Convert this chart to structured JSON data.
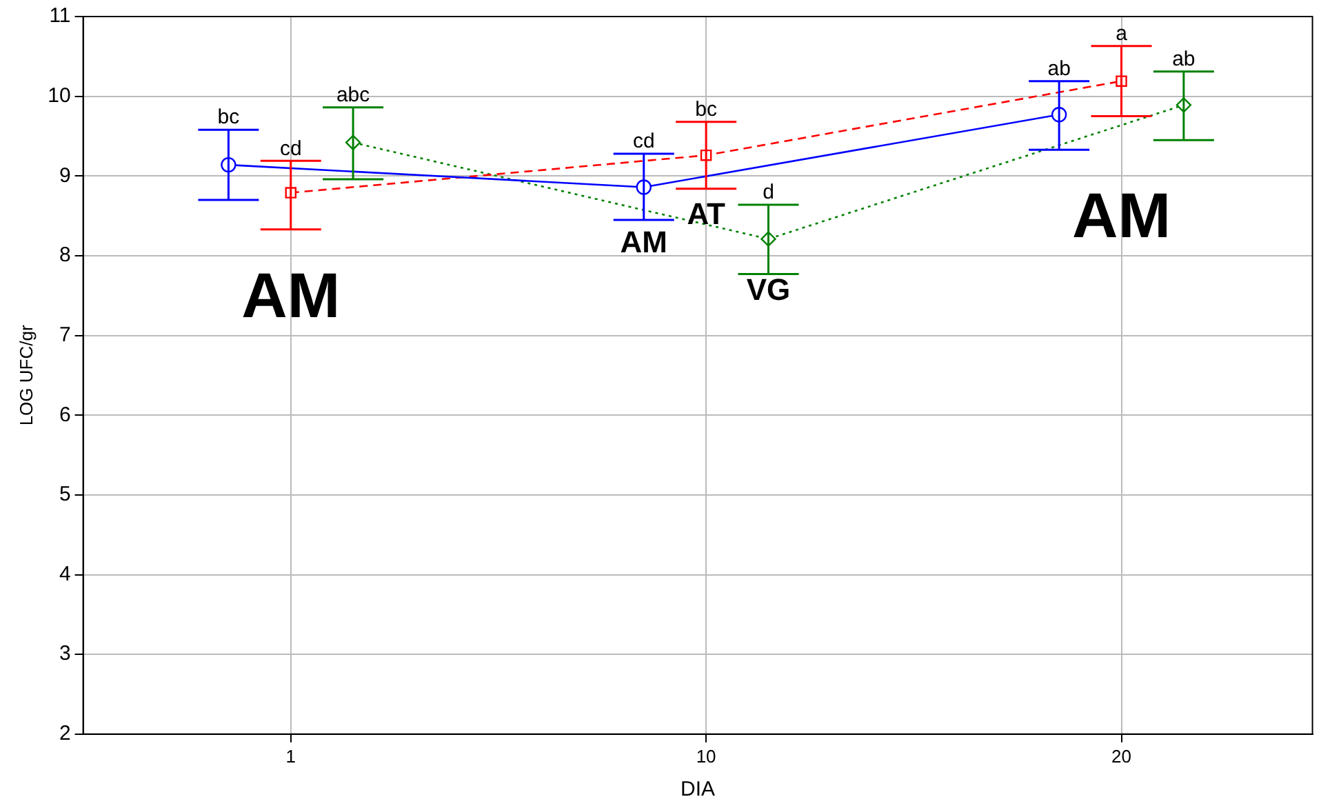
{
  "chart_data": {
    "type": "line",
    "xlabel": "DIA",
    "ylabel": "LOG UFC/gr",
    "categories": [
      "1",
      "10",
      "20"
    ],
    "ylim": [
      2,
      11
    ],
    "yticks": [
      2,
      3,
      4,
      5,
      6,
      7,
      8,
      9,
      10,
      11
    ],
    "grid": true,
    "legend": false,
    "series": [
      {
        "color": "#0000ff",
        "marker": "circle",
        "line_style": "solid",
        "values": [
          9.14,
          8.86,
          9.77
        ],
        "errors": [
          [
            8.7,
            9.58
          ],
          [
            8.45,
            9.28
          ],
          [
            9.33,
            10.19
          ]
        ]
      },
      {
        "color": "#ff0000",
        "marker": "square",
        "line_style": "dashed",
        "values": [
          8.79,
          9.26,
          10.19
        ],
        "errors": [
          [
            8.33,
            9.19
          ],
          [
            8.84,
            9.68
          ],
          [
            9.75,
            10.63
          ]
        ]
      },
      {
        "color": "#008000",
        "marker": "diamond",
        "line_style": "dotted",
        "values": [
          9.42,
          8.21,
          9.89
        ],
        "errors": [
          [
            8.96,
            9.86
          ],
          [
            7.77,
            8.64
          ],
          [
            9.45,
            10.31
          ]
        ]
      }
    ],
    "annotations": [
      "bc",
      "cd",
      "abc",
      "cd",
      "bc",
      "d",
      "ab",
      "a",
      "ab",
      "AM",
      "AM",
      "AT",
      "VG",
      "AM"
    ]
  }
}
